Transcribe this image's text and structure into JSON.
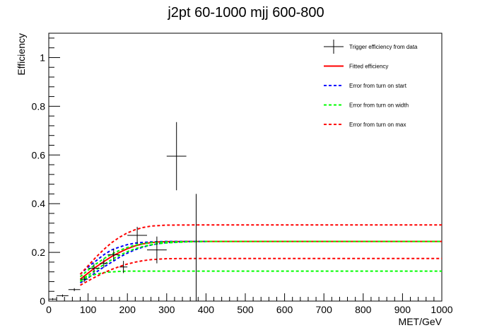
{
  "chart_data": {
    "type": "scatter",
    "title": "j2pt 60-1000 mjj 600-800",
    "xlabel": "MET/GeV",
    "ylabel": "Efficiency",
    "xlim": [
      0,
      1000
    ],
    "ylim": [
      0,
      1.1
    ],
    "x_ticks": [
      0,
      100,
      200,
      300,
      400,
      500,
      600,
      700,
      800,
      900,
      1000
    ],
    "y_ticks": [
      0,
      0.2,
      0.4,
      0.6,
      0.8,
      1
    ],
    "x_tick_labels": [
      "0",
      "100",
      "200",
      "300",
      "400",
      "500",
      "600",
      "700",
      "800",
      "900",
      "1000"
    ],
    "y_tick_labels": [
      "0",
      "0.2",
      "0.4",
      "0.6",
      "0.8",
      "1"
    ],
    "grid": false,
    "legend_position": "top-right",
    "legend": [
      {
        "label": "Trigger efficiency from data",
        "style": "marker",
        "color": "#000000"
      },
      {
        "label": "Fitted efficiency",
        "style": "solid",
        "color": "#ff0000"
      },
      {
        "label": "Error from turn on start",
        "style": "dashed",
        "color": "#0000ff"
      },
      {
        "label": "Error from turn on width",
        "style": "dashed",
        "color": "#00ff00"
      },
      {
        "label": "Error from turn on max",
        "style": "dashed",
        "color": "#ff0000"
      }
    ],
    "data_points": [
      {
        "x": 10,
        "y": 0.008,
        "xerr": 10,
        "yerr": 0.004
      },
      {
        "x": 35,
        "y": 0.022,
        "xerr": 15,
        "yerr": 0.005
      },
      {
        "x": 65,
        "y": 0.047,
        "xerr": 15,
        "yerr": 0.006
      },
      {
        "x": 90,
        "y": 0.09,
        "xerr": 10,
        "yerr": 0.012
      },
      {
        "x": 115,
        "y": 0.135,
        "xerr": 15,
        "yerr": 0.018
      },
      {
        "x": 140,
        "y": 0.155,
        "xerr": 10,
        "yerr": 0.018
      },
      {
        "x": 165,
        "y": 0.19,
        "xerr": 15,
        "yerr": 0.025
      },
      {
        "x": 190,
        "y": 0.14,
        "xerr": 10,
        "yerr": 0.025
      },
      {
        "x": 225,
        "y": 0.27,
        "xerr": 25,
        "yerr": 0.035
      },
      {
        "x": 275,
        "y": 0.21,
        "xerr": 25,
        "yerr": 0.055
      },
      {
        "x": 325,
        "y": 0.595,
        "xerr": 25,
        "yerr": 0.14
      },
      {
        "x": 375,
        "y": 0.0,
        "xerr": 25,
        "yerr_up": 0.44,
        "yerr_down": 0.0
      }
    ],
    "series": [
      {
        "name": "Fitted efficiency",
        "color": "#ff0000",
        "dashed": false,
        "x": [
          80,
          100,
          120,
          140,
          160,
          180,
          200,
          220,
          240,
          260,
          280,
          300,
          350,
          400,
          500,
          600,
          700,
          800,
          900,
          1000
        ],
        "y": [
          0.09,
          0.115,
          0.14,
          0.162,
          0.183,
          0.2,
          0.215,
          0.227,
          0.235,
          0.24,
          0.243,
          0.244,
          0.245,
          0.245,
          0.245,
          0.245,
          0.245,
          0.245,
          0.245,
          0.245
        ]
      },
      {
        "name": "Error from turn on start",
        "color": "#0000ff",
        "dashed": true,
        "x": [
          80,
          100,
          120,
          140,
          160,
          180,
          200,
          220,
          240,
          260,
          280,
          300,
          350,
          400
        ],
        "y": [
          0.11,
          0.14,
          0.165,
          0.19,
          0.21,
          0.222,
          0.232,
          0.238,
          0.241,
          0.243,
          0.244,
          0.245,
          0.245,
          0.245
        ]
      },
      {
        "name": "Error from turn on start",
        "color": "#0000ff",
        "dashed": true,
        "x": [
          80,
          100,
          120,
          140,
          160,
          180,
          200,
          220,
          240,
          260,
          280,
          300,
          350,
          400
        ],
        "y": [
          0.075,
          0.095,
          0.118,
          0.14,
          0.16,
          0.18,
          0.197,
          0.211,
          0.222,
          0.23,
          0.236,
          0.24,
          0.244,
          0.245
        ]
      },
      {
        "name": "Error from turn on width",
        "color": "#00ff00",
        "dashed": true,
        "x": [
          80,
          100,
          120,
          140,
          160,
          180,
          200,
          220,
          240,
          260,
          280,
          300,
          350,
          400,
          500,
          600,
          700,
          800,
          900,
          1000
        ],
        "y": [
          0.1,
          0.127,
          0.152,
          0.174,
          0.193,
          0.208,
          0.22,
          0.23,
          0.236,
          0.24,
          0.242,
          0.243,
          0.244,
          0.245,
          0.245,
          0.245,
          0.245,
          0.245,
          0.245,
          0.245
        ]
      },
      {
        "name": "Error from turn on width",
        "color": "#00ff00",
        "dashed": true,
        "x": [
          80,
          100,
          120,
          140,
          160,
          180,
          200,
          220,
          240,
          260,
          280,
          300,
          350,
          400
        ],
        "y": [
          0.085,
          0.105,
          0.128,
          0.15,
          0.17,
          0.188,
          0.203,
          0.215,
          0.224,
          0.231,
          0.236,
          0.239,
          0.243,
          0.245
        ]
      },
      {
        "name": "Error from turn on width",
        "color": "#00ff00",
        "dashed": true,
        "x": [
          80,
          100,
          120,
          140,
          160,
          180,
          200,
          250,
          300,
          400,
          500,
          600,
          700,
          800,
          900,
          1000
        ],
        "y": [
          0.08,
          0.1,
          0.11,
          0.117,
          0.12,
          0.122,
          0.123,
          0.123,
          0.123,
          0.123,
          0.123,
          0.123,
          0.123,
          0.123,
          0.123,
          0.123
        ]
      },
      {
        "name": "Error from turn on max",
        "color": "#ff0000",
        "dashed": true,
        "x": [
          80,
          100,
          120,
          140,
          160,
          180,
          200,
          220,
          240,
          260,
          280,
          300,
          400,
          500,
          600,
          700,
          800,
          900,
          1000
        ],
        "y": [
          0.11,
          0.145,
          0.18,
          0.212,
          0.24,
          0.262,
          0.28,
          0.293,
          0.302,
          0.308,
          0.31,
          0.312,
          0.313,
          0.313,
          0.313,
          0.313,
          0.313,
          0.313,
          0.313
        ]
      },
      {
        "name": "Error from turn on max",
        "color": "#ff0000",
        "dashed": true,
        "x": [
          80,
          100,
          120,
          140,
          160,
          180,
          200,
          220,
          240,
          260,
          280,
          300,
          400,
          500,
          600,
          700,
          800,
          900,
          1000
        ],
        "y": [
          0.065,
          0.083,
          0.1,
          0.116,
          0.13,
          0.142,
          0.152,
          0.16,
          0.166,
          0.17,
          0.172,
          0.174,
          0.175,
          0.175,
          0.175,
          0.175,
          0.175,
          0.175,
          0.175
        ]
      }
    ]
  }
}
